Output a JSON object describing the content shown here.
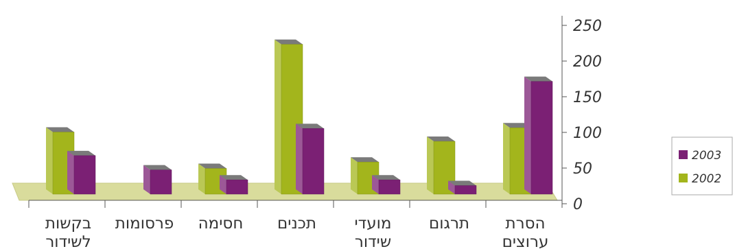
{
  "chart_data": {
    "type": "bar",
    "title": "",
    "xlabel": "",
    "ylabel": "",
    "categories": [
      [
        "הסרת",
        "ערוצים"
      ],
      [
        "תרגום"
      ],
      [
        "מועדי",
        "שידור"
      ],
      [
        "תכנים"
      ],
      [
        "חסימה"
      ],
      [
        "פרסומות"
      ],
      [
        "בקשות",
        "לשידור"
      ]
    ],
    "category_order": "right-to-left",
    "series": [
      {
        "name": "2002",
        "color": "#a3b51c",
        "values": [
          93,
          74,
          45,
          210,
          36,
          null,
          87
        ]
      },
      {
        "name": "2003",
        "color": "#7b2074",
        "values": [
          158,
          12,
          20,
          92,
          20,
          34,
          54
        ]
      }
    ],
    "ylim": [
      0,
      250
    ],
    "yticks": [
      "0",
      "50",
      "100",
      "150",
      "200",
      "250"
    ],
    "y_axis_position": "right",
    "style": "3d-columns",
    "grid": false,
    "legend": {
      "position": "right",
      "order": [
        "2003",
        "2002"
      ]
    }
  }
}
